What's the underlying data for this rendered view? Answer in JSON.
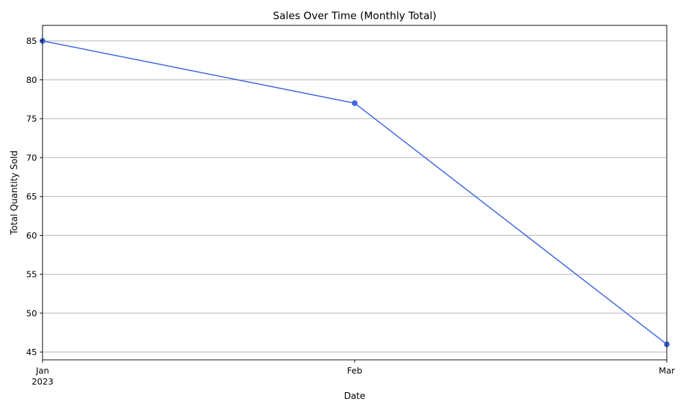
{
  "chart_data": {
    "type": "line",
    "title": "Sales Over Time (Monthly Total)",
    "xlabel": "Date",
    "ylabel": "Total Quantity Sold",
    "x": [
      "2023-01",
      "2023-02",
      "2023-03"
    ],
    "x_tick_labels": [
      {
        "month": "Jan",
        "year": "2023"
      },
      {
        "month": "Feb",
        "year": ""
      },
      {
        "month": "Mar",
        "year": ""
      }
    ],
    "series": [
      {
        "values": [
          85,
          77,
          46
        ],
        "color": "#4169e1",
        "marker": "circle"
      }
    ],
    "ylim": [
      44,
      87
    ],
    "y_ticks": [
      45,
      50,
      55,
      60,
      65,
      70,
      75,
      80,
      85
    ],
    "grid": "horizontal",
    "grid_color": "#b0b0b0"
  }
}
